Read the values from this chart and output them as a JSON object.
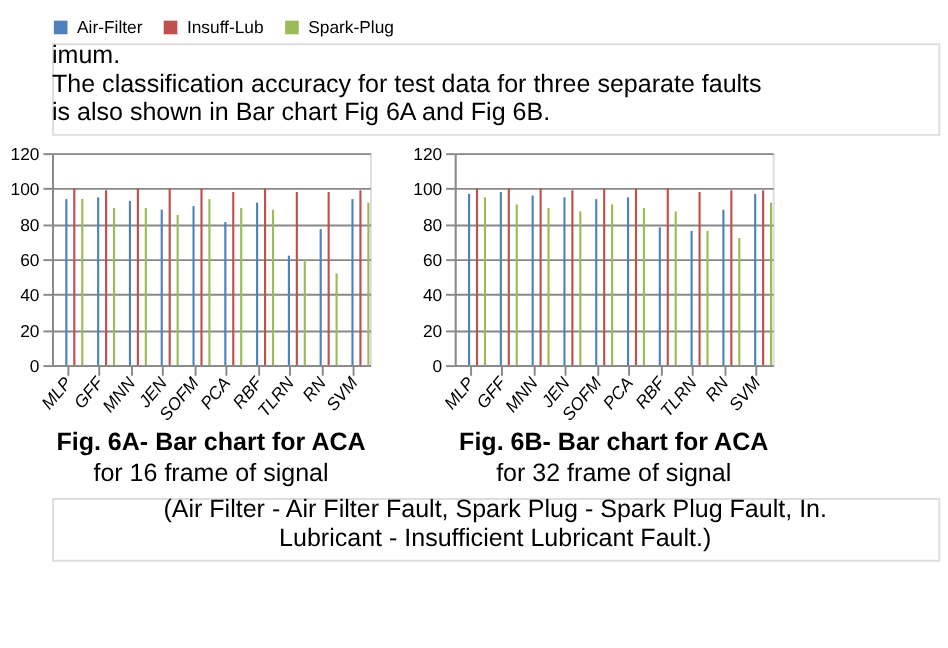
{
  "chart_data": [
    {
      "type": "bar",
      "title": "Fig. 6A- Bar chart for ACA",
      "subtitle": "for 16 frame of signal",
      "annotations": [
        "imum.",
        "The classification accuracy for test data for three separate faults is also shown in Bar chart Fig 6A and Fig 6B.",
        "(Air Filter - Air Filter Fault, Spark Plug - Spark Plug Fault, In. Lubricant - Insufficient Lubricant Fault.)"
      ],
      "categories": [
        "MLP",
        "GFF",
        "MNN",
        "JEN",
        "SOFM",
        "PCA",
        "RBF",
        "TLRN",
        "RN",
        "SVM"
      ],
      "series": [
        {
          "name": "Air-Filter",
          "color": "#4f81bd",
          "values": [
            94,
            95,
            93,
            88,
            90,
            81,
            92,
            62,
            77,
            94
          ]
        },
        {
          "name": "Insuff-Lub",
          "color": "#c0504d",
          "values": [
            100,
            99,
            100,
            100,
            100,
            98,
            100,
            98,
            98,
            99
          ]
        },
        {
          "name": "Spark-Plug",
          "color": "#9bbb59",
          "values": [
            94,
            89,
            89,
            85,
            94,
            89,
            88,
            60,
            52,
            92
          ]
        }
      ],
      "ylim": [
        0,
        120
      ],
      "yticks": [
        0,
        20,
        40,
        60,
        80,
        100,
        120
      ],
      "grid": "y",
      "legend": "top"
    },
    {
      "type": "bar",
      "title": "Fig. 6B- Bar chart for ACA",
      "subtitle": "for 32 frame of signal",
      "categories": [
        "MLP",
        "GFF",
        "MNN",
        "JEN",
        "SOFM",
        "PCA",
        "RBF",
        "TLRN",
        "RN",
        "SVM"
      ],
      "series": [
        {
          "name": "Air-Filter",
          "color": "#4f81bd",
          "values": [
            97,
            98,
            96,
            95,
            94,
            95,
            78,
            76,
            88,
            97
          ]
        },
        {
          "name": "Insuff-Lub",
          "color": "#c0504d",
          "values": [
            100,
            100,
            100,
            99,
            100,
            100,
            100,
            98,
            99,
            99
          ]
        },
        {
          "name": "Spark-Plug",
          "color": "#9bbb59",
          "values": [
            95,
            91,
            89,
            87,
            91,
            89,
            87,
            76,
            72,
            92
          ]
        }
      ],
      "ylim": [
        0,
        120
      ],
      "yticks": [
        0,
        20,
        40,
        60,
        80,
        100,
        120
      ],
      "grid": "y",
      "legend": "top"
    }
  ]
}
